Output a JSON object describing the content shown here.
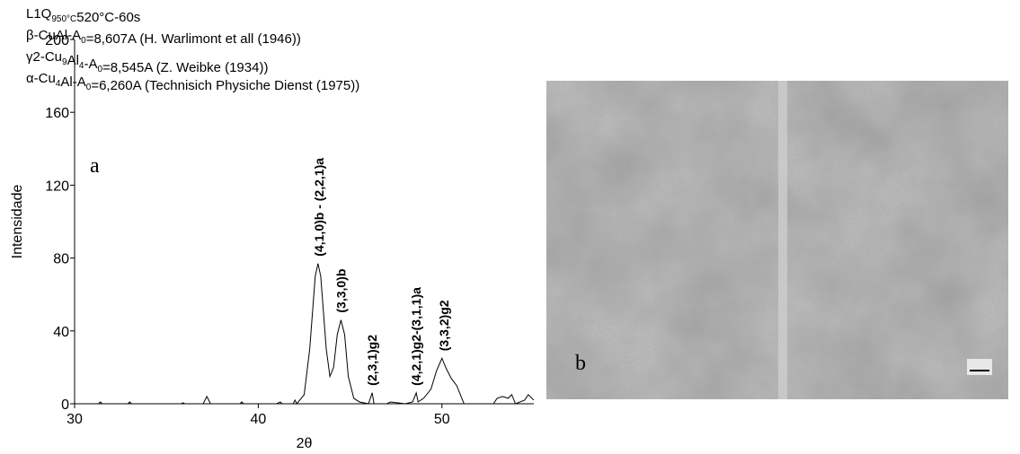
{
  "chart_data": {
    "type": "line",
    "header_lines": [
      [
        {
          "t": "L1Q"
        },
        {
          "sub": "950°C"
        },
        {
          "t": "520°C-60s"
        }
      ],
      [
        {
          "t": "β-CuAl-A"
        },
        {
          "sub": "0"
        },
        {
          "t": "=8,607A (H. Warlimont et all (1946))"
        }
      ],
      [
        {
          "t": "γ2-Cu"
        },
        {
          "sub": "9"
        },
        {
          "t": "Al"
        },
        {
          "sub": "4"
        },
        {
          "t": "-A"
        },
        {
          "sub": "0"
        },
        {
          "t": "=8,545A (Z. Weibke (1934))"
        }
      ],
      [
        {
          "t": "α-Cu"
        },
        {
          "sub": "4"
        },
        {
          "t": "Al-A"
        },
        {
          "sub": "0"
        },
        {
          "t": "=6,260A (Technisich Physiche Dienst (1975))"
        }
      ]
    ],
    "panel_label": "a",
    "x_label": "2θ",
    "y_label": "Intensidade",
    "xlim": [
      30,
      55
    ],
    "xticks": [
      30,
      40,
      50
    ],
    "ylim": [
      0,
      200
    ],
    "yticks": [
      0,
      40,
      80,
      120,
      160,
      200
    ],
    "x": [
      30,
      31.3,
      31.4,
      31.5,
      32.9,
      33,
      33.1,
      35.8,
      35.9,
      36,
      37,
      37.2,
      37.4,
      39,
      39.1,
      39.2,
      41,
      41.2,
      41.3,
      41.9,
      42,
      42.1,
      42.5,
      42.8,
      43.1,
      43.25,
      43.4,
      43.7,
      43.9,
      44.1,
      44.3,
      44.5,
      44.7,
      44.9,
      45.2,
      45.5,
      46,
      46.2,
      46.3,
      47,
      47.2,
      48,
      48.4,
      48.6,
      48.7,
      49,
      49.4,
      49.7,
      50,
      50.2,
      50.5,
      50.8,
      51,
      51.2,
      52.8,
      53,
      53.3,
      53.6,
      53.8,
      54,
      54.5,
      54.7,
      55
    ],
    "series": [
      {
        "color": "#000000",
        "values": [
          0,
          0,
          1,
          0,
          0,
          1,
          0,
          0,
          0.5,
          0,
          0,
          4,
          0,
          0,
          1,
          0,
          0,
          1,
          0,
          0,
          2,
          0,
          5,
          30,
          70,
          77,
          70,
          30,
          15,
          20,
          38,
          46,
          38,
          15,
          3,
          1,
          0,
          6,
          0,
          0,
          1,
          0,
          1,
          6,
          1,
          3,
          8,
          18,
          25,
          20,
          14,
          10,
          5,
          0,
          0,
          3,
          4,
          3,
          5,
          0,
          2,
          5,
          2
        ]
      }
    ],
    "annotations": [
      {
        "text": "(4,1,0)b - (2,2,1)a",
        "x": 43.3,
        "y": 77
      },
      {
        "text": "(3,3,0)b",
        "x": 44.5,
        "y": 46
      },
      {
        "text": "(2,3,1)g2",
        "x": 46.2,
        "y": 6
      },
      {
        "text": "(4,2,1)g2-(3,1,1)a",
        "x": 48.6,
        "y": 6
      },
      {
        "text": "(3,3,2)g2",
        "x": 50.1,
        "y": 25
      }
    ]
  },
  "image": {
    "label": "b"
  }
}
